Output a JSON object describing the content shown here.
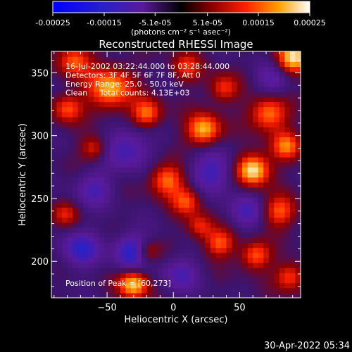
{
  "chart_data": {
    "type": "heatmap",
    "title": "Reconstructed RHESSI Image",
    "xlabel": "Heliocentric X (arcsec)",
    "ylabel": "Heliocentric Y (arcsec)",
    "xlim": [
      -92,
      96
    ],
    "ylim": [
      171,
      367
    ],
    "x_ticks": [
      -50,
      0,
      50
    ],
    "y_ticks": [
      200,
      250,
      300,
      350
    ],
    "colorbar": {
      "ticks": [
        "-0.00025",
        "-0.00015",
        "-5.1e-05",
        "5.1e-05",
        "0.00015",
        "0.00025"
      ],
      "vmin": -0.00025,
      "vmax": 0.00025,
      "label": "(photons cm⁻² s⁻¹ asec⁻²)"
    },
    "annotations": [
      "16-Jul-2002 03:22:44.000 to 03:28:44.000",
      "Detectors: 3F 4F 5F 6F 7F 8F, Att 0",
      "Energy Range: 25.0 - 50.0 keV",
      "Clean     Total counts: 4.13E+03"
    ],
    "peak_label": "Position of Peak = [60,273]",
    "peak": [
      60,
      273
    ],
    "hot_spots": [
      {
        "x": 60,
        "y": 273,
        "v": 0.00025,
        "r": 9
      },
      {
        "x": 23,
        "y": 305,
        "v": 0.00021,
        "r": 9
      },
      {
        "x": -48,
        "y": 338,
        "v": 0.0002,
        "r": 12
      },
      {
        "x": -20,
        "y": 318,
        "v": 0.00017,
        "r": 8
      },
      {
        "x": 90,
        "y": 362,
        "v": 0.00023,
        "r": 9
      },
      {
        "x": 72,
        "y": 318,
        "v": 0.00018,
        "r": 10
      },
      {
        "x": 85,
        "y": 292,
        "v": 0.00016,
        "r": 8
      },
      {
        "x": -5,
        "y": 265,
        "v": 0.00017,
        "r": 9
      },
      {
        "x": 10,
        "y": 248,
        "v": 0.00014,
        "r": 8
      },
      {
        "x": -80,
        "y": 322,
        "v": 0.00014,
        "r": 8
      },
      {
        "x": -60,
        "y": 290,
        "v": 0.00012,
        "r": 7
      },
      {
        "x": -30,
        "y": 182,
        "v": 0.00022,
        "r": 8
      },
      {
        "x": -20,
        "y": 208,
        "v": 0.00014,
        "r": 7
      },
      {
        "x": 35,
        "y": 215,
        "v": 0.00015,
        "r": 8
      },
      {
        "x": 62,
        "y": 205,
        "v": 0.00016,
        "r": 8
      },
      {
        "x": 80,
        "y": 240,
        "v": 0.00015,
        "r": 9
      },
      {
        "x": 88,
        "y": 188,
        "v": 0.00014,
        "r": 8
      },
      {
        "x": -75,
        "y": 360,
        "v": 0.00015,
        "r": 9
      },
      {
        "x": 38,
        "y": 338,
        "v": 0.00013,
        "r": 8
      },
      {
        "x": 10,
        "y": 355,
        "v": 0.00012,
        "r": 8
      },
      {
        "x": -82,
        "y": 238,
        "v": 0.0001,
        "r": 7
      },
      {
        "x": 20,
        "y": 228,
        "v": 0.00012,
        "r": 7
      }
    ],
    "cold_spots": [
      {
        "x": -30,
        "y": 208,
        "v": -0.00018,
        "r": 10
      },
      {
        "x": -70,
        "y": 210,
        "v": -0.00014,
        "r": 10
      },
      {
        "x": -35,
        "y": 290,
        "v": -0.00012,
        "r": 12
      },
      {
        "x": 30,
        "y": 272,
        "v": -0.00012,
        "r": 12
      },
      {
        "x": -60,
        "y": 258,
        "v": -0.0001,
        "r": 10
      },
      {
        "x": 55,
        "y": 240,
        "v": -0.0001,
        "r": 10
      },
      {
        "x": 5,
        "y": 190,
        "v": -0.0001,
        "r": 10
      },
      {
        "x": 75,
        "y": 345,
        "v": -9e-05,
        "r": 10
      }
    ],
    "grid": false
  },
  "timestamp": "30-Apr-2022 05:34"
}
